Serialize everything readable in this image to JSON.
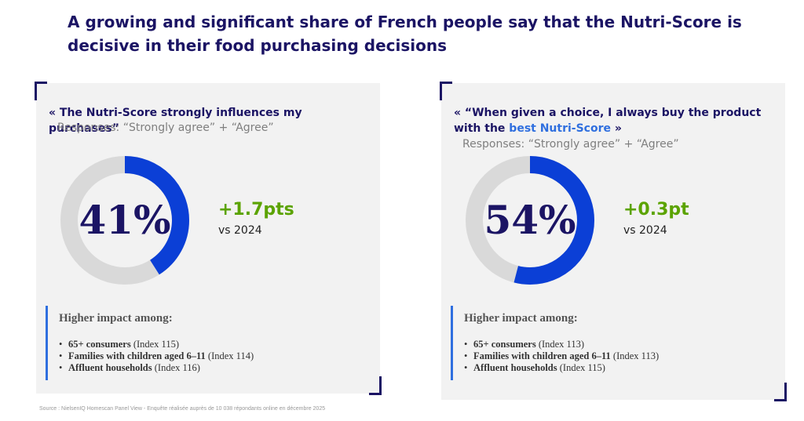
{
  "headline": "A growing and significant share of French people say that the Nutri-Score is decisive in their food purchasing decisions",
  "colors": {
    "accent": "#0b3fd6",
    "track": "#d9d9d9",
    "navy": "#1b1464",
    "green": "#5ba300"
  },
  "chart_data": [
    {
      "type": "pie",
      "quote_open": "« The Nutri-Score strongly influences my purchases”",
      "subtitle": "Responses: “Strongly agree” + “Agree”",
      "value": 41,
      "value_label": "41%",
      "delta": "+1.7pts",
      "delta_vs": "vs 2024",
      "impact_title": "Higher impact among:",
      "impact": [
        {
          "group": "65+ consumers",
          "index": "(Index 115)"
        },
        {
          "group": "Families with children aged 6–11",
          "index": "(Index 114)"
        },
        {
          "group": "Affluent households",
          "index": "(Index 116)"
        }
      ]
    },
    {
      "type": "pie",
      "quote_open": "« “When given a choice, I always buy the product with the ",
      "quote_highlight": "best Nutri-Score",
      "quote_close": " »",
      "subtitle": "Responses: “Strongly agree” + “Agree”",
      "value": 54,
      "value_label": "54%",
      "delta": "+0.3pt",
      "delta_vs": "vs 2024",
      "impact_title": "Higher impact among:",
      "impact": [
        {
          "group": "65+ consumers",
          "index": "(Index 113)"
        },
        {
          "group": "Families with children aged 6–11",
          "index": "(Index 113)"
        },
        {
          "group": "Affluent households",
          "index": "(Index 115)"
        }
      ]
    }
  ],
  "source": "Source : NielsenIQ Homescan Panel View - Enquête réalisée auprès de 10 038 répondants online en décembre 2025"
}
